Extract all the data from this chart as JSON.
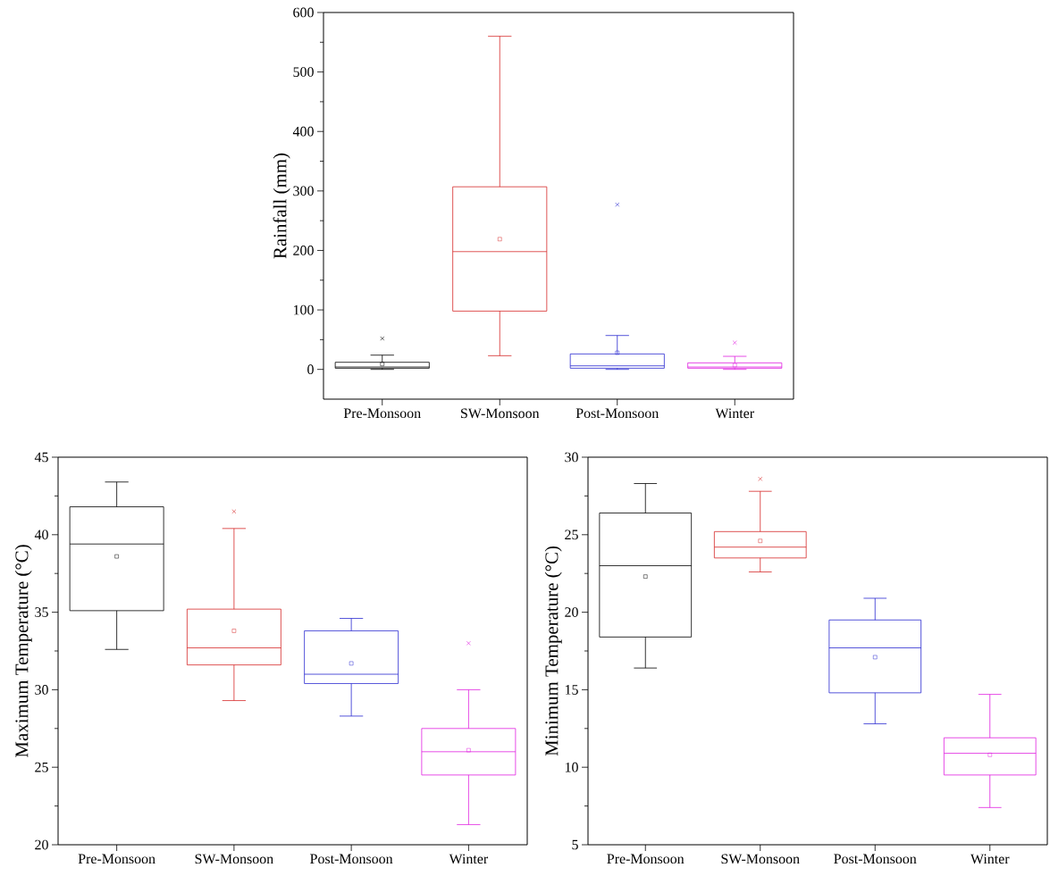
{
  "chart_data": [
    {
      "type": "box",
      "ylabel": "Rainfall (mm)",
      "categories": [
        "Pre-Monsoon",
        "SW-Monsoon",
        "Post-Monsoon",
        "Winter"
      ],
      "colors": [
        "#000000",
        "#d62a2a",
        "#2a2ad0",
        "#e020e0"
      ],
      "ylim": [
        -50,
        600
      ],
      "yticks": [
        0,
        100,
        200,
        300,
        400,
        500,
        600
      ],
      "boxes": [
        {
          "low": 0,
          "q1": 2,
          "median": 4,
          "q3": 12,
          "high": 24,
          "mean": 9,
          "outliers": [
            52
          ]
        },
        {
          "low": 23,
          "q1": 98,
          "median": 198,
          "q3": 307,
          "high": 560,
          "mean": 219
        },
        {
          "low": 0,
          "q1": 2,
          "median": 6,
          "q3": 26,
          "high": 57,
          "mean": 28,
          "outliers": [
            277
          ]
        },
        {
          "low": 0,
          "q1": 2,
          "median": 4,
          "q3": 11,
          "high": 22,
          "mean": 7,
          "outliers": [
            45
          ]
        }
      ]
    },
    {
      "type": "box",
      "ylabel": "Maximum Temperature (°C)",
      "categories": [
        "Pre-Monsoon",
        "SW-Monsoon",
        "Post-Monsoon",
        "Winter"
      ],
      "colors": [
        "#000000",
        "#d62a2a",
        "#2a2ad0",
        "#e020e0"
      ],
      "ylim": [
        20,
        45
      ],
      "yticks": [
        20,
        25,
        30,
        35,
        40,
        45
      ],
      "boxes": [
        {
          "low": 32.6,
          "q1": 35.1,
          "median": 39.4,
          "q3": 41.8,
          "high": 43.4,
          "mean": 38.6
        },
        {
          "low": 29.3,
          "q1": 31.6,
          "median": 32.7,
          "q3": 35.2,
          "high": 40.4,
          "mean": 33.8,
          "outliers": [
            41.5
          ]
        },
        {
          "low": 28.3,
          "q1": 30.4,
          "median": 31.0,
          "q3": 33.8,
          "high": 34.6,
          "mean": 31.7
        },
        {
          "low": 21.3,
          "q1": 24.5,
          "median": 26.0,
          "q3": 27.5,
          "high": 30.0,
          "mean": 26.1,
          "outliers": [
            33.0
          ]
        }
      ]
    },
    {
      "type": "box",
      "ylabel": "Minimum Temperature (°C)",
      "categories": [
        "Pre-Monsoon",
        "SW-Monsoon",
        "Post-Monsoon",
        "Winter"
      ],
      "colors": [
        "#000000",
        "#d62a2a",
        "#2a2ad0",
        "#e020e0"
      ],
      "ylim": [
        5,
        30
      ],
      "yticks": [
        5,
        10,
        15,
        20,
        25,
        30
      ],
      "boxes": [
        {
          "low": 16.4,
          "q1": 18.4,
          "median": 23.0,
          "q3": 26.4,
          "high": 28.3,
          "mean": 22.3
        },
        {
          "low": 22.6,
          "q1": 23.5,
          "median": 24.2,
          "q3": 25.2,
          "high": 27.8,
          "mean": 24.6,
          "outliers": [
            28.6
          ]
        },
        {
          "low": 12.8,
          "q1": 14.8,
          "median": 17.7,
          "q3": 19.5,
          "high": 20.9,
          "mean": 17.1
        },
        {
          "low": 7.4,
          "q1": 9.5,
          "median": 10.9,
          "q3": 11.9,
          "high": 14.7,
          "mean": 10.8
        }
      ]
    }
  ]
}
